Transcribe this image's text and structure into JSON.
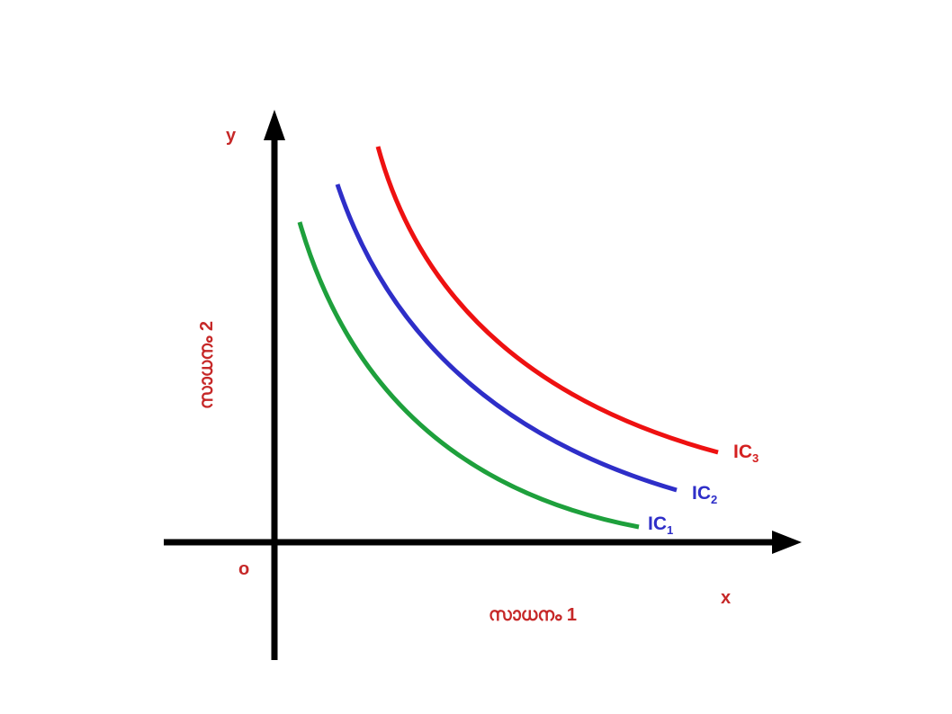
{
  "axes": {
    "x_label": "x",
    "y_label": "y",
    "origin_label": "o",
    "x_title": "സാധനം 1",
    "y_title": "സാധനം 2"
  },
  "curves": [
    {
      "name": "IC",
      "subscript": "1",
      "line_color": "#1ea03c",
      "label_color": "#2e2ec8"
    },
    {
      "name": "IC",
      "subscript": "2",
      "line_color": "#2e2ec8",
      "label_color": "#2e2ec8"
    },
    {
      "name": "IC",
      "subscript": "3",
      "line_color": "#ee1111",
      "label_color": "#d42020"
    }
  ],
  "colors": {
    "axis": "#000000",
    "axis_text": "#c62828"
  }
}
